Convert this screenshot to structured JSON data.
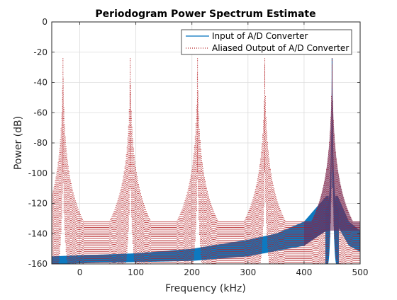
{
  "chart_data": {
    "type": "line",
    "title": "Periodogram Power Spectrum Estimate",
    "xlabel": "Frequency (kHz)",
    "ylabel": "Power (dB)",
    "xlim": [
      -50,
      500
    ],
    "ylim": [
      -160,
      0
    ],
    "xticks": [
      0,
      100,
      200,
      300,
      400,
      500
    ],
    "yticks": [
      0,
      -20,
      -40,
      -60,
      -80,
      -100,
      -120,
      -140,
      -160
    ],
    "grid": true,
    "legend_position": "top-right",
    "series": [
      {
        "name": "Input of A/D Converter",
        "color": "#0072BD",
        "style": "solid",
        "peaks": [
          {
            "x": 450,
            "y": -24
          }
        ],
        "floor_upper": [
          [
            -50,
            -155
          ],
          [
            100,
            -153
          ],
          [
            200,
            -150
          ],
          [
            300,
            -144
          ],
          [
            350,
            -140
          ],
          [
            400,
            -132
          ],
          [
            440,
            -115
          ]
        ],
        "floor_lower": [
          [
            -50,
            -160
          ],
          [
            200,
            -158
          ],
          [
            300,
            -155
          ],
          [
            400,
            -148
          ],
          [
            440,
            -138
          ]
        ],
        "right_skirt_upper": [
          [
            460,
            -115
          ],
          [
            480,
            -132
          ],
          [
            500,
            -138
          ]
        ],
        "right_skirt_lower": [
          [
            460,
            -135
          ],
          [
            480,
            -148
          ],
          [
            500,
            -152
          ]
        ]
      },
      {
        "name": "Aliased Output of A/D Converter",
        "color": "#B52025",
        "style": "dotted",
        "peaks": [
          {
            "x": -30,
            "y": -24
          },
          {
            "x": 90,
            "y": -24
          },
          {
            "x": 210,
            "y": -24
          },
          {
            "x": 330,
            "y": -24
          },
          {
            "x": 450,
            "y": -24
          }
        ],
        "valley_upper": -132,
        "valley_lower": -160
      }
    ]
  }
}
